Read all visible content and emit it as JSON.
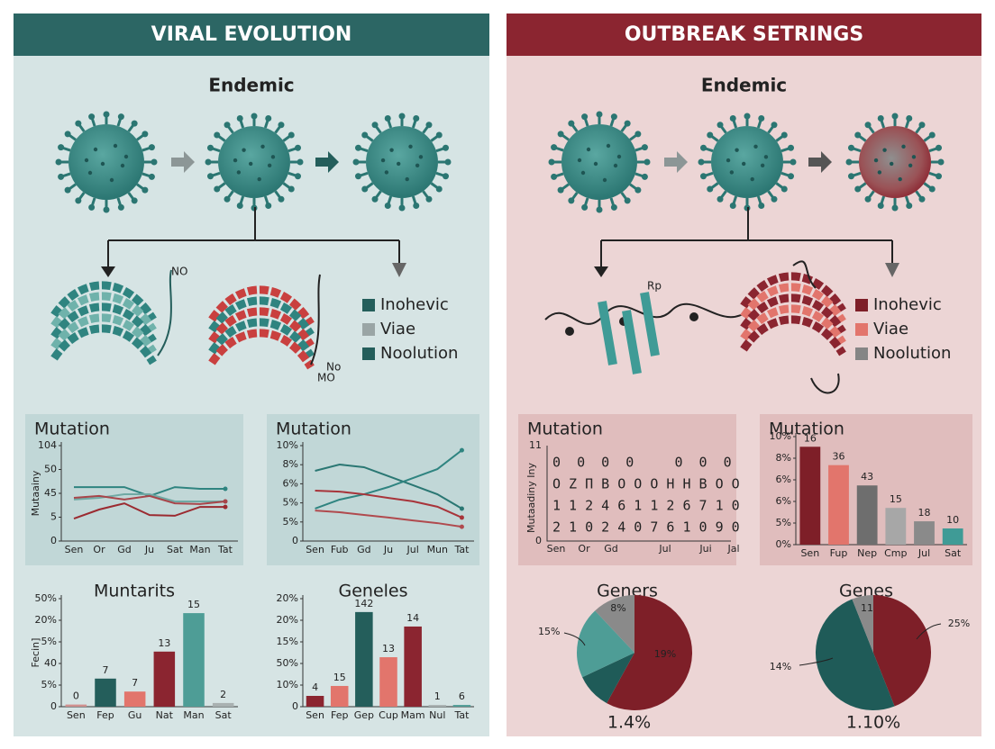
{
  "panels": [
    {
      "header": "VIRAL EVOLUTION",
      "color": "#2c6664",
      "subtitle": "Endemic",
      "diagram_labels": [
        "NO",
        "No",
        "MO"
      ],
      "legend": [
        {
          "label": "Inohevic",
          "color": "#245e5b"
        },
        {
          "label": "Viae",
          "color": "#9aa5a5"
        },
        {
          "label": "Noolution",
          "color": "#245e5b"
        }
      ],
      "charts": [
        {
          "type": "line",
          "title": "Mutation",
          "y_label": "Mutaainy",
          "categories": [
            "Sen",
            "Or",
            "Gd",
            "Ju",
            "Sat",
            "Man",
            "Tat"
          ],
          "ylim": [
            0,
            4
          ],
          "yticks": [
            {
              "value": 4,
              "label": "104"
            },
            {
              "value": 3,
              "label": "50"
            },
            {
              "value": 2,
              "label": "45"
            },
            {
              "value": 1,
              "label": "5"
            },
            {
              "value": 0,
              "label": "0"
            }
          ],
          "series": [
            {
              "color": "#2f8480",
              "values": [
                2.26,
                2.26,
                2.26,
                1.89,
                2.26,
                2.19,
                2.19
              ]
            },
            {
              "color": "#6fa9a4",
              "values": [
                1.74,
                1.81,
                1.96,
                1.96,
                1.66,
                1.66,
                1.66
              ]
            },
            {
              "color": "#a8454a",
              "values": [
                1.81,
                1.89,
                1.74,
                1.89,
                1.58,
                1.55,
                1.66
              ]
            },
            {
              "color": "#9b2a30",
              "values": [
                0.94,
                1.32,
                1.58,
                1.09,
                1.06,
                1.43,
                1.43
              ]
            }
          ]
        },
        {
          "type": "line",
          "title": "Mutation",
          "categories": [
            "Sen",
            "Fub",
            "Gd",
            "Ju",
            "Jul",
            "Mun",
            "Tat"
          ],
          "ylim": [
            0,
            5
          ],
          "yticks": [
            {
              "value": 5,
              "label": "10%"
            },
            {
              "value": 4,
              "label": "8%"
            },
            {
              "value": 3,
              "label": "6%"
            },
            {
              "value": 2,
              "label": "5%"
            },
            {
              "value": 1,
              "label": "5%"
            },
            0
          ],
          "series": [
            {
              "color": "#2a7773",
              "values": [
                3.68,
                4.01,
                3.87,
                3.4,
                2.93,
                2.45,
                1.7
              ]
            },
            {
              "color": "#2f8480",
              "values": [
                1.7,
                2.17,
                2.45,
                2.83,
                3.3,
                3.77,
                4.76
              ]
            },
            {
              "color": "#a8343a",
              "values": [
                2.64,
                2.59,
                2.45,
                2.26,
                2.08,
                1.8,
                1.23
              ]
            },
            {
              "color": "#b04a4e",
              "values": [
                1.6,
                1.51,
                1.37,
                1.23,
                1.08,
                0.94,
                0.75
              ]
            }
          ]
        },
        {
          "type": "bar",
          "title": "Muntarits",
          "y_label": "Fecin]",
          "categories": [
            "Sen",
            "Fep",
            "Gu",
            "Nat",
            "Man",
            "Sat"
          ],
          "ylim": [
            0,
            5
          ],
          "yticks": [
            {
              "value": 5,
              "label": "50%"
            },
            {
              "value": 4,
              "label": "20%"
            },
            {
              "value": 3,
              "label": "5%"
            },
            {
              "value": 2,
              "label": "40"
            },
            {
              "value": 1,
              "label": "5%"
            },
            0
          ],
          "values": [
            0.1,
            1.3,
            0.7,
            2.55,
            4.33,
            0.17
          ],
          "bar_labels": [
            "0",
            "7",
            "7",
            "13",
            "15",
            "2"
          ],
          "colors": [
            "#d0908e",
            "#245e5b",
            "#e2756c",
            "#8b2530",
            "#4e9d96",
            "#a9b1b1"
          ]
        },
        {
          "type": "bar",
          "title": "Geneles",
          "categories": [
            "Sen",
            "Fep",
            "Gep",
            "Cup",
            "Mam",
            "Nul",
            "Tat"
          ],
          "ylim": [
            0,
            5
          ],
          "yticks": [
            {
              "value": 5,
              "label": "20%"
            },
            {
              "value": 4,
              "label": "20%"
            },
            {
              "value": 3,
              "label": "15%"
            },
            {
              "value": 2,
              "label": "50%"
            },
            {
              "value": 1,
              "label": "10%"
            },
            0
          ],
          "values": [
            0.5,
            0.96,
            4.38,
            2.29,
            3.71,
            0.08,
            0.08
          ],
          "bar_labels": [
            "4",
            "15",
            "142",
            "13",
            "14",
            "1",
            "6"
          ],
          "colors": [
            "#8b2530",
            "#e2756c",
            "#245e5b",
            "#e2756c",
            "#8b2530",
            "#a9b1b1",
            "#4e9d96"
          ]
        }
      ]
    },
    {
      "header": "OUTBREAK SETRINGS",
      "color": "#8b2530",
      "subtitle": "Endemic",
      "diagram_labels": [
        "Rp"
      ],
      "legend": [
        {
          "label": "Inohevic",
          "color": "#7e1f28"
        },
        {
          "label": "Viae",
          "color": "#e2756c"
        },
        {
          "label": "Noolution",
          "color": "#858585"
        }
      ],
      "charts": [
        {
          "type": "grid",
          "title": "Mutation",
          "y_label": "Mutaadiny Iny",
          "yticks": [
            "11",
            "0"
          ],
          "rows": [
            "0  0  0  0     0  0  0",
            "O Z Π B O O O H H B O O",
            "1 1 2 4 6 1 1 2 6 7 1 0",
            "2 1 0 2 4 0 7 6 1 0 9 0"
          ],
          "categories": [
            "Sen",
            "Or",
            "Gd",
            "Jul",
            "Jui",
            "Jal"
          ]
        },
        {
          "type": "bar",
          "title": "Mutation",
          "categories": [
            "Sen",
            "Fup",
            "Nep",
            "Cmp",
            "Jul",
            "Sat"
          ],
          "ylim": [
            0,
            5
          ],
          "yticks": [
            {
              "value": 5,
              "label": "10%"
            },
            {
              "value": 4,
              "label": "8%"
            },
            {
              "value": 3,
              "label": "6%"
            },
            {
              "value": 2,
              "label": "6%"
            },
            {
              "value": 1,
              "label": "5%"
            },
            {
              "value": 0,
              "label": "0%"
            }
          ],
          "values": [
            4.53,
            3.68,
            2.74,
            1.7,
            1.08,
            0.75
          ],
          "bar_labels": [
            "16",
            "36",
            "43",
            "15",
            "18",
            "10"
          ],
          "colors": [
            "#7e1f28",
            "#e2756c",
            "#6e6e6e",
            "#a7a7a7",
            "#8a8a8a",
            "#3f9b96"
          ]
        },
        {
          "type": "pie",
          "title": "Geners",
          "values": [
            58,
            10,
            20,
            12
          ],
          "colors": [
            "#7e1f28",
            "#1f5b58",
            "#4e9d96",
            "#8a8a8a"
          ],
          "annotations": [
            "15%",
            "19%",
            "8%",
            "1.4%"
          ]
        },
        {
          "type": "pie",
          "title": "Genes",
          "values": [
            44,
            50,
            6
          ],
          "colors": [
            "#7e1f28",
            "#1f5b58",
            "#8a8a8a"
          ],
          "annotations": [
            "25%",
            "14%",
            "11",
            "1.10%"
          ]
        }
      ]
    }
  ]
}
